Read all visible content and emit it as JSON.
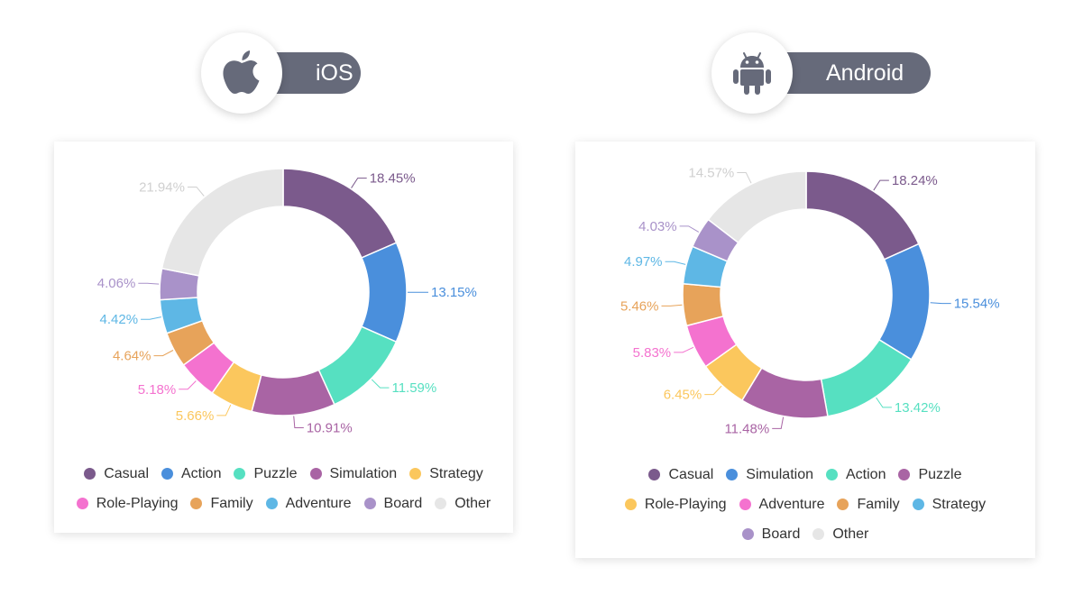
{
  "platforms": {
    "ios": {
      "label": "iOS",
      "icon": "apple-icon"
    },
    "android": {
      "label": "Android",
      "icon": "android-icon"
    }
  },
  "colors": {
    "purple_dark": "#7b5a8c",
    "blue": "#4a8fdc",
    "teal": "#56e0c1",
    "magenta": "#a964a4",
    "yellow": "#fbc75d",
    "pink": "#f472cf",
    "orange": "#e7a35a",
    "sky": "#5eb7e5",
    "lavender": "#a992c9",
    "grey": "#e6e6e6",
    "grey_label": "#d0d0d0",
    "badge": "#666a7a"
  },
  "chart_data": [
    {
      "type": "pie",
      "id": "ios",
      "categories": [
        "Casual",
        "Action",
        "Puzzle",
        "Simulation",
        "Strategy",
        "Role-Playing",
        "Family",
        "Adventure",
        "Board",
        "Other"
      ],
      "values": [
        18.45,
        13.15,
        11.59,
        10.91,
        5.66,
        5.18,
        4.64,
        4.42,
        4.06,
        21.94
      ],
      "labels": [
        "18.45%",
        "13.15%",
        "11.59%",
        "10.91%",
        "5.66%",
        "5.18%",
        "4.64%",
        "4.42%",
        "4.06%",
        "21.94%"
      ],
      "colors": [
        "#7b5a8c",
        "#4a8fdc",
        "#56e0c1",
        "#a964a4",
        "#fbc75d",
        "#f472cf",
        "#e7a35a",
        "#5eb7e5",
        "#a992c9",
        "#e6e6e6"
      ],
      "legend_rows": [
        [
          "Casual",
          "Action",
          "Puzzle",
          "Simulation",
          "Strategy"
        ],
        [
          "Role-Playing",
          "Family",
          "Adventure",
          "Board",
          "Other"
        ]
      ],
      "legend_position": "bottom"
    },
    {
      "type": "pie",
      "id": "android",
      "categories": [
        "Casual",
        "Simulation",
        "Action",
        "Puzzle",
        "Role-Playing",
        "Adventure",
        "Family",
        "Strategy",
        "Board",
        "Other"
      ],
      "values": [
        18.24,
        15.54,
        13.42,
        11.48,
        6.45,
        5.83,
        5.46,
        4.97,
        4.03,
        14.57
      ],
      "labels": [
        "18.24%",
        "15.54%",
        "13.42%",
        "11.48%",
        "6.45%",
        "5.83%",
        "5.46%",
        "4.97%",
        "4.03%",
        "14.57%"
      ],
      "colors": [
        "#7b5a8c",
        "#4a8fdc",
        "#56e0c1",
        "#a964a4",
        "#fbc75d",
        "#f472cf",
        "#e7a35a",
        "#5eb7e5",
        "#a992c9",
        "#e6e6e6"
      ],
      "legend_rows": [
        [
          "Casual",
          "Simulation",
          "Action",
          "Puzzle"
        ],
        [
          "Role-Playing",
          "Adventure",
          "Family",
          "Strategy"
        ],
        [
          "Board",
          "Other"
        ]
      ],
      "legend_position": "bottom"
    }
  ]
}
